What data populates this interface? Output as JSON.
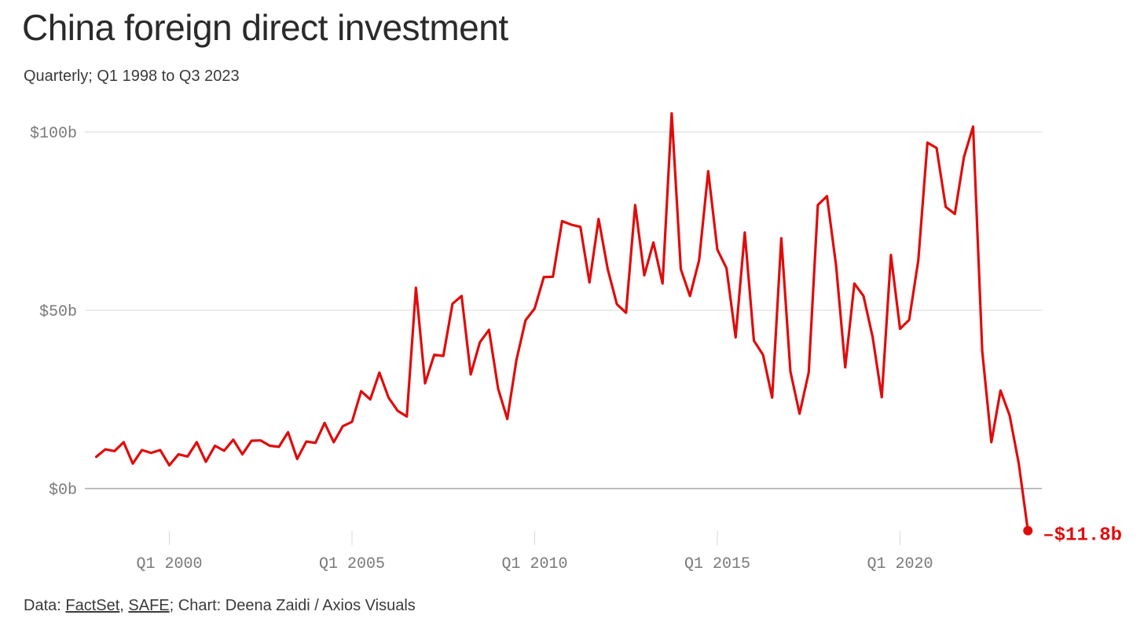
{
  "title": "China foreign direct investment",
  "subtitle": "Quarterly; Q1 1998 to Q3 2023",
  "footer": {
    "prefix": "Data: ",
    "source1": "FactSet",
    "sep1": ", ",
    "source2": "SAFE",
    "suffix": "; Chart: Deena Zaidi / Axios Visuals"
  },
  "colors": {
    "line": "#e00c0c",
    "grid": "#d9d9d9",
    "zero_line": "#bdbdbd",
    "tick_text": "#7a7a7a"
  },
  "chart_data": {
    "type": "line",
    "x_start": "Q1 1998",
    "x_end": "Q3 2023",
    "frequency": "quarterly",
    "y_ticks": [
      {
        "value": 0,
        "label": "$0b"
      },
      {
        "value": 50,
        "label": "$50b"
      },
      {
        "value": 100,
        "label": "$100b"
      }
    ],
    "x_ticks": [
      {
        "quarter": "Q1 2000",
        "label": "Q1 2000"
      },
      {
        "quarter": "Q1 2005",
        "label": "Q1 2005"
      },
      {
        "quarter": "Q1 2010",
        "label": "Q1 2010"
      },
      {
        "quarter": "Q1 2015",
        "label": "Q1 2015"
      },
      {
        "quarter": "Q1 2020",
        "label": "Q1 2020"
      }
    ],
    "ylim": [
      -15,
      110
    ],
    "grid": true,
    "end_label": "–$11.8b",
    "series": [
      {
        "values": [
          8.9,
          11,
          10.5,
          13,
          7,
          10.8,
          10,
          10.8,
          6.5,
          9.6,
          9,
          13,
          7.5,
          12,
          10.6,
          13.7,
          9.6,
          13.4,
          13.5,
          12,
          11.7,
          15.8,
          8.3,
          13.2,
          12.8,
          18.4,
          13,
          17.5,
          18.7,
          27.3,
          25,
          32.5,
          25.5,
          21.8,
          20.2,
          56.3,
          29.5,
          37.5,
          37.2,
          51.8,
          54,
          32,
          41,
          44.5,
          28,
          19.5,
          36,
          47.2,
          50.5,
          59.3,
          59.4,
          75,
          74,
          73.4,
          57.8,
          75.6,
          61.5,
          51.7,
          49.3,
          79.5,
          59.8,
          69,
          57.5,
          105.2,
          61.5,
          54,
          64,
          89,
          67,
          61.8,
          42.4,
          71.8,
          41.5,
          37.5,
          25.5,
          70.2,
          32.8,
          21,
          32.5,
          79.5,
          82,
          62.5,
          34,
          57.5,
          54,
          42.5,
          25.6,
          65.5,
          44.8,
          47.3,
          64,
          97,
          95.5,
          79,
          77,
          93,
          101.5,
          38.5,
          13,
          27.5,
          20.5,
          7,
          -11.8
        ]
      }
    ]
  }
}
